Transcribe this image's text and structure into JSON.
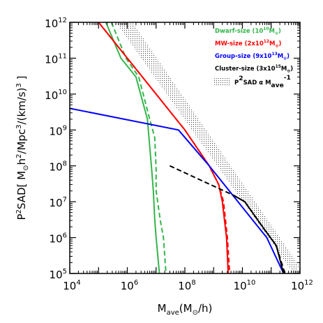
{
  "chart_data": {
    "type": "line",
    "title": "",
    "xlabel": "M_ave(M_⊙/h)",
    "ylabel": "P²SAD[ M_⊙h²/Mpc³/(km/s)³ ]",
    "xscale": "log",
    "yscale": "log",
    "xlim": [
      10000,
      1000000000000
    ],
    "ylim": [
      100000,
      1000000000000
    ],
    "x_tick_exponents": [
      "4",
      "6",
      "8",
      "10",
      "12"
    ],
    "y_tick_exponents": [
      "5",
      "6",
      "7",
      "8",
      "9",
      "10",
      "11",
      "12"
    ],
    "tick_base": "10",
    "grid": false,
    "legend_position": "top-right",
    "legend": [
      {
        "text": "Dwarf-size (10^10 M⊙)",
        "label": "Dwarf-size (10",
        "sup": "10",
        "tail": "M",
        "sub": "⊙",
        "close": ")",
        "color": "#33b54a"
      },
      {
        "text": "MW-size (2x10^12 M⊙)",
        "label": "MW-size (2x10",
        "sup": "12",
        "tail": "M",
        "sub": "⊙",
        "close": ")",
        "color": "#ff0000"
      },
      {
        "text": "Group-size (9x10^13 M⊙)",
        "label": "Group-size (9x10",
        "sup": "13",
        "tail": "M",
        "sub": "⊙",
        "close": ")",
        "color": "#0000ff"
      },
      {
        "text": "Cluster-size (3x10^15 M⊙)",
        "label": "Cluster-size (3x10",
        "sup": "15",
        "tail": "M",
        "sub": "⊙",
        "close": ")",
        "color": "#000000"
      },
      {
        "text": "P²SAD α M_ave^-1",
        "label": "P",
        "sup": "2",
        "tail": "SAD α M",
        "sub": "ave",
        "close": "",
        "sup2": "-1",
        "color": "#000000",
        "hatched": true
      }
    ],
    "band": {
      "name": "P2SAD alpha Mave^-1",
      "slope": -1,
      "x_range": [
        400000,
        600000000000
      ],
      "lower": [
        [
          400000,
          1000000000000.0
        ],
        [
          600000000000,
          100000.0
        ]
      ],
      "upper": [
        [
          1500000,
          1000000000000.0
        ],
        [
          1000000000000,
          150000.0
        ]
      ]
    },
    "series": [
      {
        "color": "#33b54a",
        "style": "solid",
        "points": [
          [
            180000.0,
            1000000000000.0
          ],
          [
            600000.0,
            100000000000.0
          ],
          [
            2000000.0,
            30000000000.0
          ],
          [
            5000000.0,
            2000000000.0
          ],
          [
            7000000.0,
            80000000.0
          ],
          [
            8000000.0,
            20000000.0
          ],
          [
            9000000.0,
            3000000.0
          ],
          [
            10000000.0,
            1000000.0
          ],
          [
            13000000.0,
            100000.0
          ]
        ]
      },
      {
        "color": "#33b54a",
        "style": "dashed",
        "points": [
          [
            280000.0,
            1000000000000.0
          ],
          [
            900000.0,
            100000000000.0
          ],
          [
            2500000.0,
            30000000000.0
          ],
          [
            6000000.0,
            2000000000.0
          ],
          [
            9000000.0,
            600000000.0
          ],
          [
            10000000.0,
            80000000.0
          ],
          [
            10000000.0,
            20000000.0
          ],
          [
            14000000.0,
            3000000.0
          ],
          [
            18000000.0,
            1000000.0
          ],
          [
            22000000.0,
            100000.0
          ]
        ]
      },
      {
        "color": "#ff0000",
        "style": "solid",
        "points": [
          [
            100000.0,
            1000000000000.0
          ],
          [
            1000000.0,
            100000000000.0
          ],
          [
            10000000.0,
            10000000000.0
          ],
          [
            100000000.0,
            1000000000.0
          ],
          [
            700000000.0,
            100000000.0
          ],
          [
            1500000000.0,
            30000000.0
          ],
          [
            2000000000.0,
            10000000.0
          ],
          [
            2800000000.0,
            1000000.0
          ],
          [
            3200000000.0,
            100000.0
          ]
        ]
      },
      {
        "color": "#ff0000",
        "style": "dashed",
        "points": [
          [
            100000.0,
            1000000000000.0
          ],
          [
            1000000.0,
            100000000000.0
          ],
          [
            10000000.0,
            10000000000.0
          ],
          [
            100000000.0,
            1000000000.0
          ],
          [
            700000000.0,
            100000000.0
          ],
          [
            1500000000.0,
            30000000.0
          ],
          [
            2200000000.0,
            10000000.0
          ],
          [
            3000000000.0,
            1000000.0
          ],
          [
            3600000000.0,
            100000.0
          ]
        ]
      },
      {
        "color": "#0000ff",
        "style": "solid",
        "points": [
          [
            10000.0,
            4000000000.0
          ],
          [
            60000000.0,
            1000000000.0
          ],
          [
            700000000.0,
            100000000.0
          ],
          [
            7000000000.0,
            10000000.0
          ],
          [
            70000000000.0,
            1000000.0
          ],
          [
            270000000000.0,
            100000.0
          ]
        ]
      },
      {
        "color": "#000000",
        "style": "dashed",
        "points": [
          [
            30000000.0,
            100000000.0
          ],
          [
            5000000000.0,
            15000000.0
          ],
          [
            12000000000.0,
            10000000.0
          ],
          [
            50000000000.0,
            2000000.0
          ],
          [
            150000000000.0,
            600000.0
          ],
          [
            300000000000.0,
            100000.0
          ]
        ]
      },
      {
        "color": "#000000",
        "style": "solid",
        "points": [
          [
            5000000000.0,
            15000000.0
          ],
          [
            12000000000.0,
            10000000.0
          ],
          [
            50000000000.0,
            2000000.0
          ],
          [
            150000000000.0,
            600000.0
          ],
          [
            270000000000.0,
            100000.0
          ]
        ]
      }
    ]
  }
}
